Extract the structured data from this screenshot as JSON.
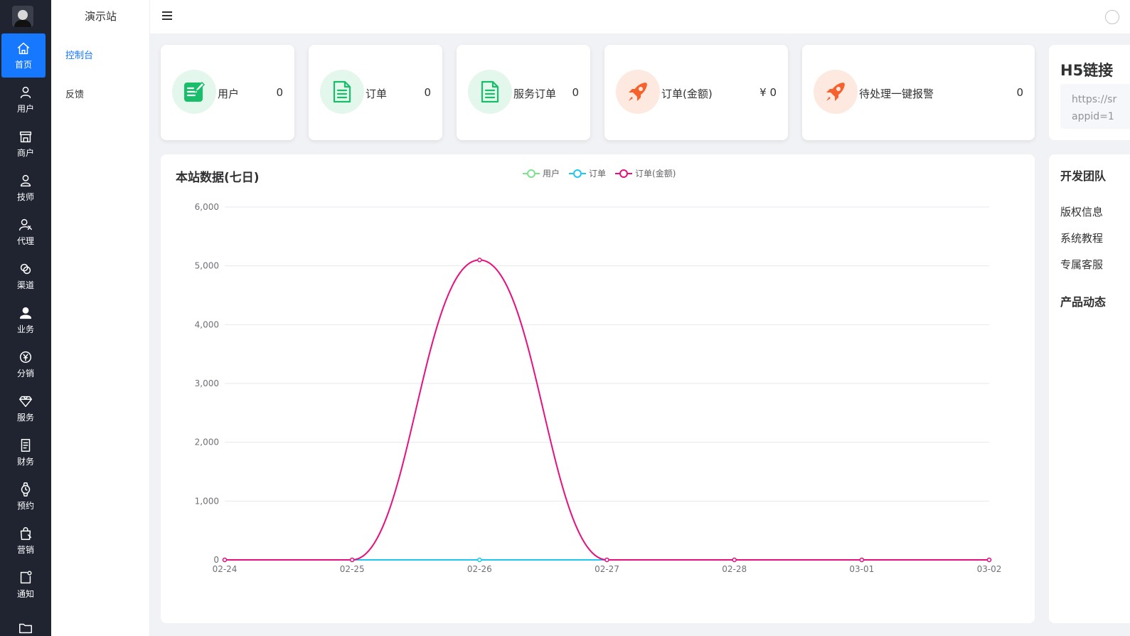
{
  "sidebar": {
    "items": [
      {
        "label": "首页",
        "icon": "home-icon",
        "active": true
      },
      {
        "label": "用户",
        "icon": "user-icon"
      },
      {
        "label": "商户",
        "icon": "store-icon"
      },
      {
        "label": "技师",
        "icon": "technician-icon"
      },
      {
        "label": "代理",
        "icon": "agent-icon"
      },
      {
        "label": "渠道",
        "icon": "channel-icon"
      },
      {
        "label": "业务",
        "icon": "business-icon"
      },
      {
        "label": "分销",
        "icon": "distribution-icon"
      },
      {
        "label": "服务",
        "icon": "diamond-icon"
      },
      {
        "label": "财务",
        "icon": "finance-icon"
      },
      {
        "label": "预约",
        "icon": "watch-icon"
      },
      {
        "label": "营销",
        "icon": "marketing-bag-icon"
      },
      {
        "label": "通知",
        "icon": "notice-icon"
      },
      {
        "label": "",
        "icon": "folder-icon"
      }
    ]
  },
  "submenu": {
    "site_title": "演示站",
    "items": [
      {
        "label": "控制台",
        "active": true
      },
      {
        "label": "反馈"
      }
    ]
  },
  "stats": [
    {
      "label": "用户",
      "value": "0",
      "icon": "edit-document-icon",
      "tone": "green"
    },
    {
      "label": "订单",
      "value": "0",
      "icon": "document-icon",
      "tone": "green"
    },
    {
      "label": "服务订单",
      "value": "0",
      "icon": "document-icon",
      "tone": "green"
    },
    {
      "label": "订单(金额)",
      "value": "¥ 0",
      "icon": "rocket-icon",
      "tone": "orange"
    },
    {
      "label": "待处理一键报警",
      "value": "0",
      "icon": "rocket-icon",
      "tone": "orange"
    }
  ],
  "h5": {
    "title": "H5链接",
    "line1": "https://sr",
    "line2": "appid=1"
  },
  "chart_title": "本站数据(七日)",
  "chart_data": {
    "type": "line",
    "x": [
      "02-24",
      "02-25",
      "02-26",
      "02-27",
      "02-28",
      "03-01",
      "03-02"
    ],
    "series": [
      {
        "name": "用户",
        "color": "#7de38f",
        "values": [
          0,
          0,
          0,
          0,
          0,
          0,
          0
        ]
      },
      {
        "name": "订单",
        "color": "#1ec8f0",
        "values": [
          0,
          0,
          0,
          0,
          0,
          0,
          0
        ]
      },
      {
        "name": "订单(金额)",
        "color": "#e8107f",
        "values": [
          0,
          0,
          5100,
          0,
          0,
          0,
          0
        ]
      }
    ],
    "ylim": [
      0,
      6000
    ],
    "yticks": [
      "0",
      "1,000",
      "2,000",
      "3,000",
      "4,000",
      "5,000",
      "6,000"
    ],
    "smooth": true,
    "grid": true,
    "legend_position": "top-center"
  },
  "right_panel": {
    "team_title": "开发团队",
    "links": [
      "版权信息",
      "系统教程",
      "专属客服"
    ],
    "news_title": "产品动态"
  },
  "colors": {
    "accent": "#1677ff",
    "rail_bg": "#1f2430",
    "green_icon": "#19be6b",
    "orange_icon": "#f5622d"
  }
}
